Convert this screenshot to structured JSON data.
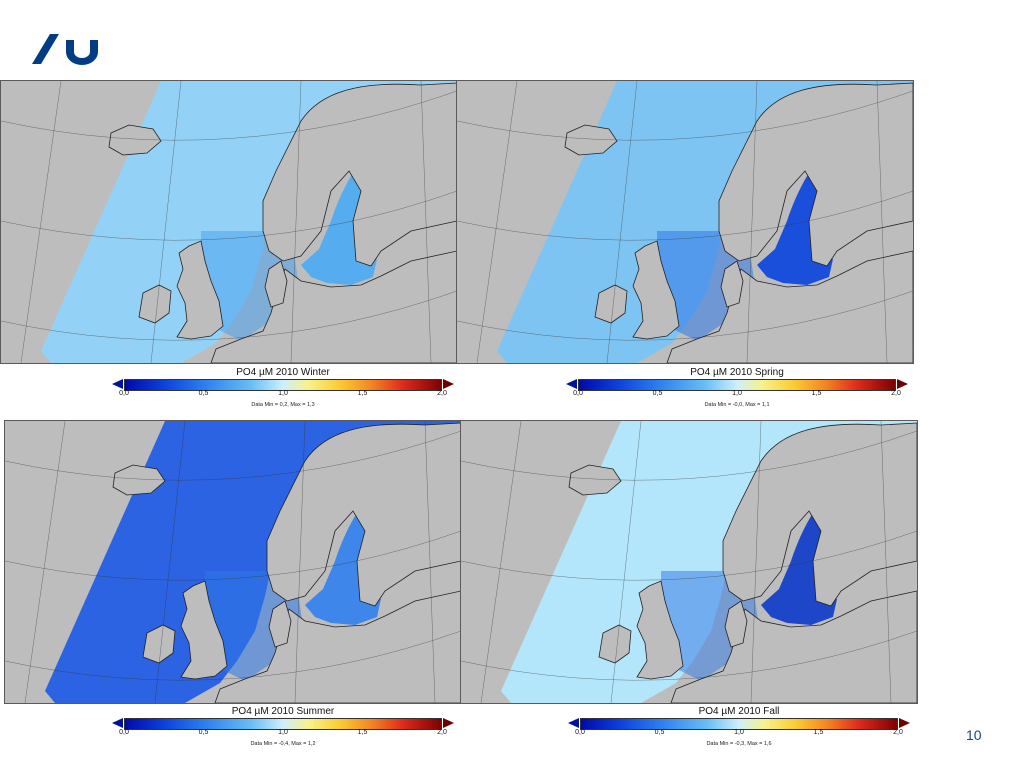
{
  "slide": {
    "page_number": "10"
  },
  "colors": {
    "brand": "#003d85",
    "land": "#bdbdbd",
    "border": "#222222"
  },
  "colorbar": {
    "ticks": [
      "0,0",
      "0,5",
      "1,0",
      "1,5",
      "2,0"
    ],
    "min": 0,
    "max": 2
  },
  "panels": [
    {
      "id": "winter",
      "title": "PO4 µM 2010 Winter",
      "stats": "Data Min = 0,2, Max = 1,3",
      "ocean_color": "#93d2f6",
      "coast_color": "#4aa2ee",
      "baltic_color": "#55acee"
    },
    {
      "id": "spring",
      "title": "PO4 µM 2010 Spring",
      "stats": "Data Min = -0,0, Max = 1,1",
      "ocean_color": "#7ec4f3",
      "coast_color": "#2f78e8",
      "baltic_color": "#1a4fdc"
    },
    {
      "id": "summer",
      "title": "PO4 µM 2010 Summer",
      "stats": "Data Min = -0,4, Max = 1,2",
      "ocean_color": "#2b63e2",
      "coast_color": "#2f78e8",
      "baltic_color": "#3f86ea"
    },
    {
      "id": "fall",
      "title": "PO4 µM 2010 Fall",
      "stats": "Data Min = -0,3, Max = 1,6",
      "ocean_color": "#b4e6fb",
      "coast_color": "#3d7fe6",
      "baltic_color": "#1e46c8"
    }
  ]
}
